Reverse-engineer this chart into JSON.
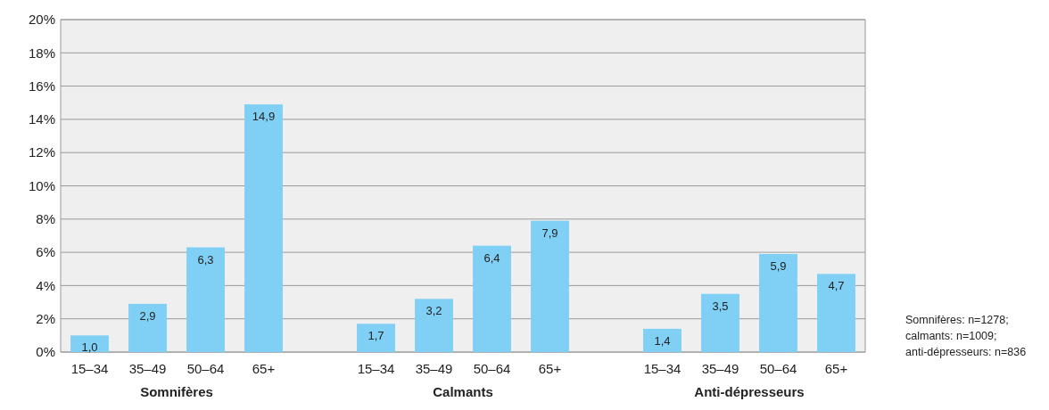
{
  "chart_data": [
    {
      "type": "bar",
      "xlabel": "Somnifères",
      "categories": [
        "15–34",
        "35–49",
        "50–64",
        "65+"
      ],
      "values": [
        1.0,
        2.9,
        6.3,
        14.9
      ],
      "value_labels": [
        "1,0",
        "2,9",
        "6,3",
        "14,9"
      ],
      "color": "#80cff5",
      "grid": "y",
      "ylim": [
        0,
        20
      ],
      "yticks": [
        {
          "value": 0,
          "label": "0%"
        },
        {
          "value": 2,
          "label": "2%"
        },
        {
          "value": 4,
          "label": "4%"
        },
        {
          "value": 6,
          "label": "6%"
        },
        {
          "value": 8,
          "label": "8%"
        },
        {
          "value": 10,
          "label": "10%"
        },
        {
          "value": 12,
          "label": "12%"
        },
        {
          "value": 14,
          "label": "14%"
        },
        {
          "value": 16,
          "label": "16%"
        },
        {
          "value": 18,
          "label": "18%"
        },
        {
          "value": 20,
          "label": "20%"
        }
      ]
    },
    {
      "type": "bar",
      "xlabel": "Calmants",
      "categories": [
        "15–34",
        "35–49",
        "50–64",
        "65+"
      ],
      "values": [
        1.7,
        3.2,
        6.4,
        7.9
      ],
      "value_labels": [
        "1,7",
        "3,2",
        "6,4",
        "7,9"
      ],
      "color": "#80cff5",
      "grid": "y",
      "tick_labels": "x",
      "ylim": [
        0,
        20
      ]
    },
    {
      "type": "bar",
      "xlabel": "Anti-dépresseurs",
      "categories": [
        "15–34",
        "35–49",
        "50–64",
        "65+"
      ],
      "values": [
        1.4,
        3.5,
        5.9,
        4.7
      ],
      "value_labels": [
        "1,4",
        "3,5",
        "5,9",
        "4,7"
      ],
      "color": "#80cff5",
      "grid": "y",
      "tick_labels": "x",
      "ylim": [
        0,
        20
      ],
      "annotations": [
        "Somnifères: n=1278;",
        "calmants: n=1009;",
        "anti-dépresseurs: n=836"
      ]
    }
  ]
}
